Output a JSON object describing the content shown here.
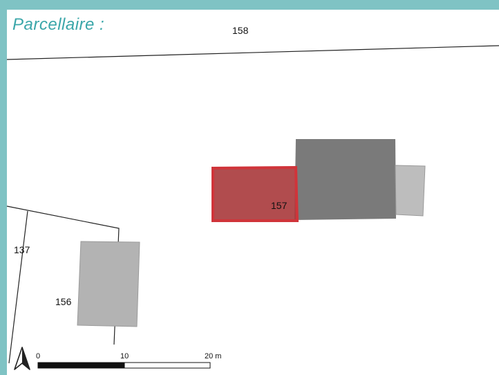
{
  "title": "Parcellaire :",
  "parcels": {
    "p158": "158",
    "p157": "157",
    "p137": "137",
    "p156": "156"
  },
  "scale_bar": {
    "labels": [
      "0",
      "10",
      "20 m"
    ]
  },
  "icons": {
    "north_arrow": "north-arrow-icon"
  },
  "colors": {
    "frame": "#7fc3c4",
    "title": "#3aa6a9",
    "highlight_fill": "#a8383b",
    "highlight_stroke": "#d0343a",
    "building_dark": "#7a7a7a",
    "building_light": "#bdbdbd",
    "building_mid": "#b3b3b3"
  }
}
